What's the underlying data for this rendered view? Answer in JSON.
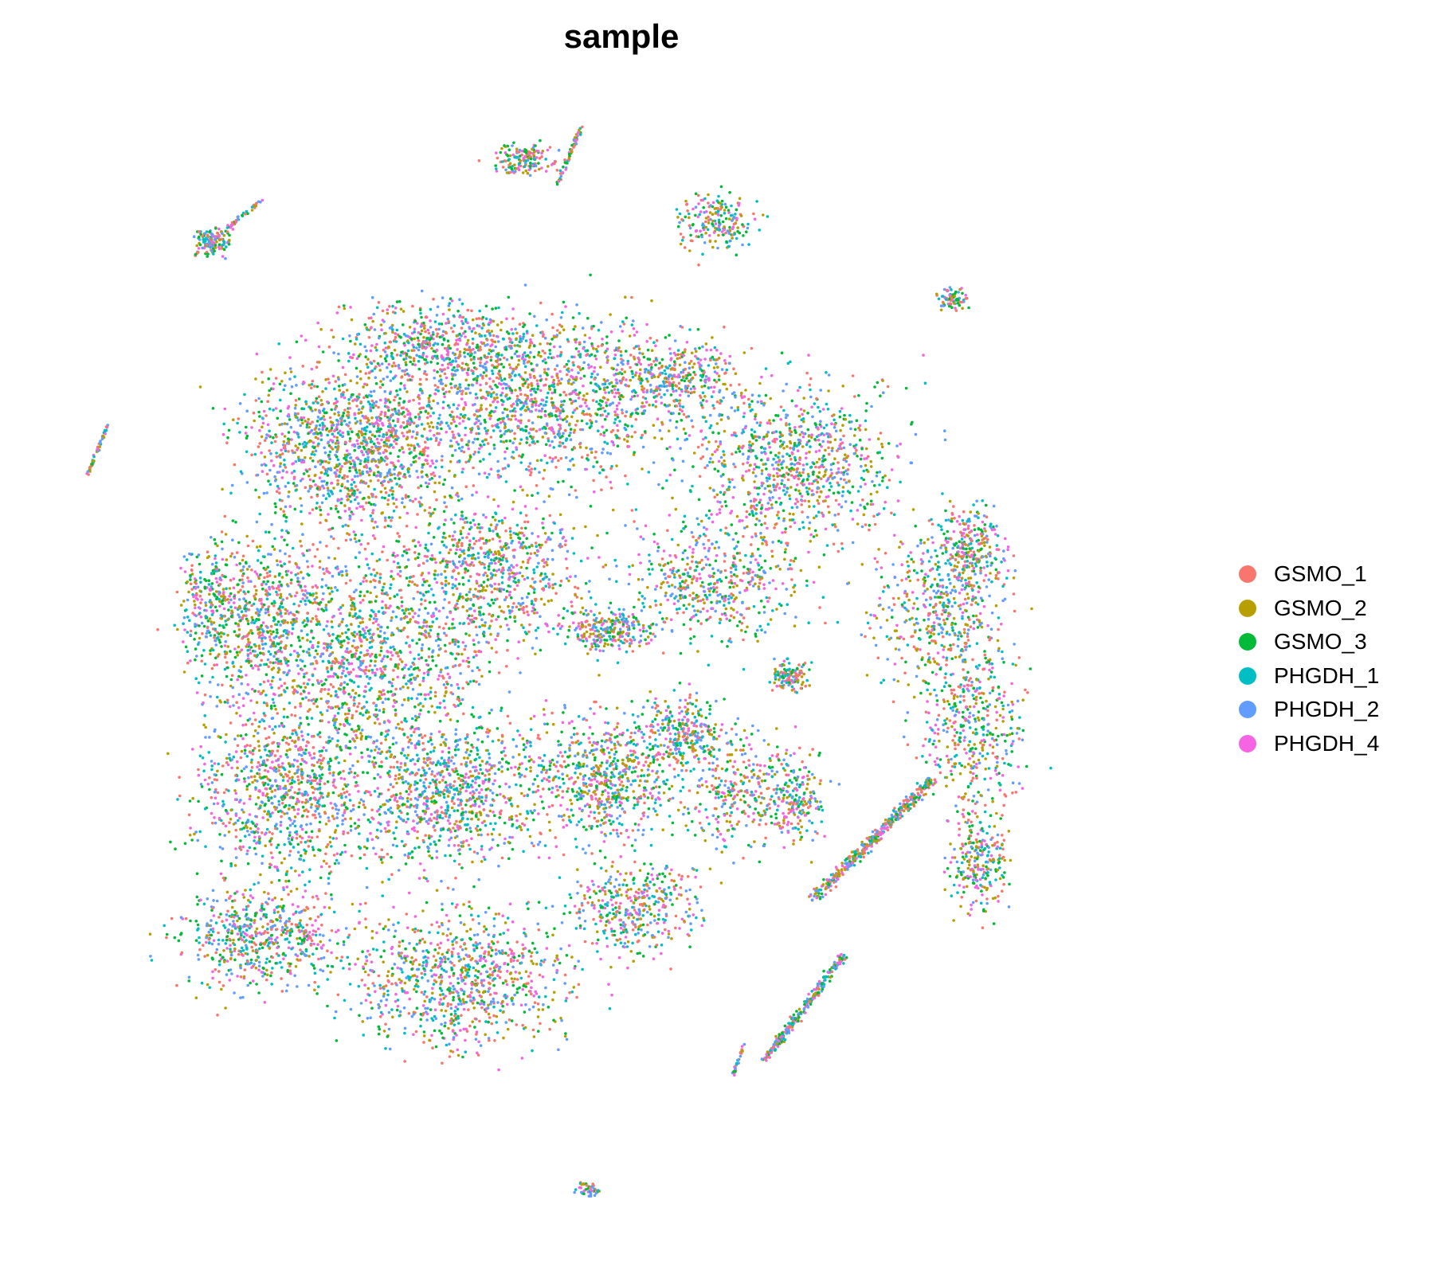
{
  "chart_data": {
    "type": "scatter",
    "title": "sample",
    "xlabel": "",
    "ylabel": "",
    "axes_visible": false,
    "grid": false,
    "legend_position": "right",
    "point_size": "small",
    "series": [
      {
        "name": "GSMO_1",
        "color": "#F8766D"
      },
      {
        "name": "GSMO_2",
        "color": "#B79F00"
      },
      {
        "name": "GSMO_3",
        "color": "#00BA38"
      },
      {
        "name": "PHGDH_1",
        "color": "#00BFC4"
      },
      {
        "name": "PHGDH_2",
        "color": "#619CFF"
      },
      {
        "name": "PHGDH_4",
        "color": "#F564E3"
      }
    ]
  }
}
